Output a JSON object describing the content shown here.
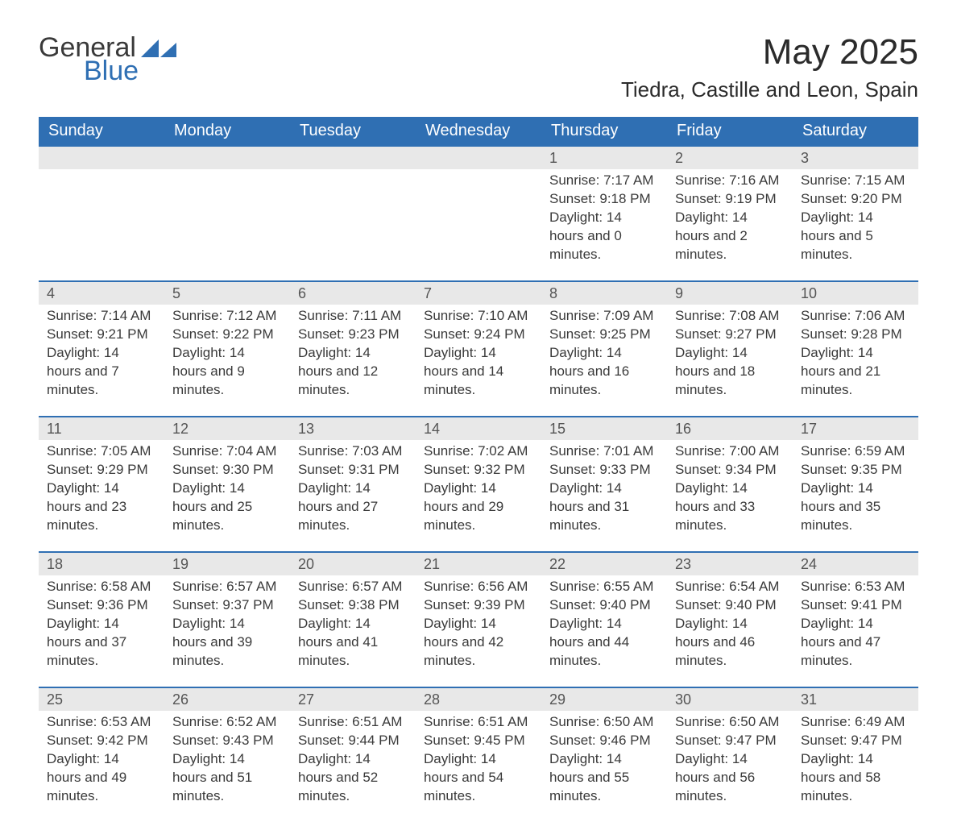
{
  "brand": {
    "name1": "General",
    "name2": "Blue",
    "icon_color": "#2f6fb3"
  },
  "title": "May 2025",
  "location": "Tiedra, Castille and Leon, Spain",
  "colors": {
    "header_bg": "#2f6fb3",
    "header_text": "#ffffff",
    "daynum_bg": "#e8e8e8",
    "text": "#3a3a3a",
    "row_border": "#2f6fb3",
    "background": "#ffffff"
  },
  "day_headers": [
    "Sunday",
    "Monday",
    "Tuesday",
    "Wednesday",
    "Thursday",
    "Friday",
    "Saturday"
  ],
  "weeks": [
    [
      null,
      null,
      null,
      null,
      {
        "day": "1",
        "sunrise": "Sunrise: 7:17 AM",
        "sunset": "Sunset: 9:18 PM",
        "daylight": "Daylight: 14 hours and 0 minutes."
      },
      {
        "day": "2",
        "sunrise": "Sunrise: 7:16 AM",
        "sunset": "Sunset: 9:19 PM",
        "daylight": "Daylight: 14 hours and 2 minutes."
      },
      {
        "day": "3",
        "sunrise": "Sunrise: 7:15 AM",
        "sunset": "Sunset: 9:20 PM",
        "daylight": "Daylight: 14 hours and 5 minutes."
      }
    ],
    [
      {
        "day": "4",
        "sunrise": "Sunrise: 7:14 AM",
        "sunset": "Sunset: 9:21 PM",
        "daylight": "Daylight: 14 hours and 7 minutes."
      },
      {
        "day": "5",
        "sunrise": "Sunrise: 7:12 AM",
        "sunset": "Sunset: 9:22 PM",
        "daylight": "Daylight: 14 hours and 9 minutes."
      },
      {
        "day": "6",
        "sunrise": "Sunrise: 7:11 AM",
        "sunset": "Sunset: 9:23 PM",
        "daylight": "Daylight: 14 hours and 12 minutes."
      },
      {
        "day": "7",
        "sunrise": "Sunrise: 7:10 AM",
        "sunset": "Sunset: 9:24 PM",
        "daylight": "Daylight: 14 hours and 14 minutes."
      },
      {
        "day": "8",
        "sunrise": "Sunrise: 7:09 AM",
        "sunset": "Sunset: 9:25 PM",
        "daylight": "Daylight: 14 hours and 16 minutes."
      },
      {
        "day": "9",
        "sunrise": "Sunrise: 7:08 AM",
        "sunset": "Sunset: 9:27 PM",
        "daylight": "Daylight: 14 hours and 18 minutes."
      },
      {
        "day": "10",
        "sunrise": "Sunrise: 7:06 AM",
        "sunset": "Sunset: 9:28 PM",
        "daylight": "Daylight: 14 hours and 21 minutes."
      }
    ],
    [
      {
        "day": "11",
        "sunrise": "Sunrise: 7:05 AM",
        "sunset": "Sunset: 9:29 PM",
        "daylight": "Daylight: 14 hours and 23 minutes."
      },
      {
        "day": "12",
        "sunrise": "Sunrise: 7:04 AM",
        "sunset": "Sunset: 9:30 PM",
        "daylight": "Daylight: 14 hours and 25 minutes."
      },
      {
        "day": "13",
        "sunrise": "Sunrise: 7:03 AM",
        "sunset": "Sunset: 9:31 PM",
        "daylight": "Daylight: 14 hours and 27 minutes."
      },
      {
        "day": "14",
        "sunrise": "Sunrise: 7:02 AM",
        "sunset": "Sunset: 9:32 PM",
        "daylight": "Daylight: 14 hours and 29 minutes."
      },
      {
        "day": "15",
        "sunrise": "Sunrise: 7:01 AM",
        "sunset": "Sunset: 9:33 PM",
        "daylight": "Daylight: 14 hours and 31 minutes."
      },
      {
        "day": "16",
        "sunrise": "Sunrise: 7:00 AM",
        "sunset": "Sunset: 9:34 PM",
        "daylight": "Daylight: 14 hours and 33 minutes."
      },
      {
        "day": "17",
        "sunrise": "Sunrise: 6:59 AM",
        "sunset": "Sunset: 9:35 PM",
        "daylight": "Daylight: 14 hours and 35 minutes."
      }
    ],
    [
      {
        "day": "18",
        "sunrise": "Sunrise: 6:58 AM",
        "sunset": "Sunset: 9:36 PM",
        "daylight": "Daylight: 14 hours and 37 minutes."
      },
      {
        "day": "19",
        "sunrise": "Sunrise: 6:57 AM",
        "sunset": "Sunset: 9:37 PM",
        "daylight": "Daylight: 14 hours and 39 minutes."
      },
      {
        "day": "20",
        "sunrise": "Sunrise: 6:57 AM",
        "sunset": "Sunset: 9:38 PM",
        "daylight": "Daylight: 14 hours and 41 minutes."
      },
      {
        "day": "21",
        "sunrise": "Sunrise: 6:56 AM",
        "sunset": "Sunset: 9:39 PM",
        "daylight": "Daylight: 14 hours and 42 minutes."
      },
      {
        "day": "22",
        "sunrise": "Sunrise: 6:55 AM",
        "sunset": "Sunset: 9:40 PM",
        "daylight": "Daylight: 14 hours and 44 minutes."
      },
      {
        "day": "23",
        "sunrise": "Sunrise: 6:54 AM",
        "sunset": "Sunset: 9:40 PM",
        "daylight": "Daylight: 14 hours and 46 minutes."
      },
      {
        "day": "24",
        "sunrise": "Sunrise: 6:53 AM",
        "sunset": "Sunset: 9:41 PM",
        "daylight": "Daylight: 14 hours and 47 minutes."
      }
    ],
    [
      {
        "day": "25",
        "sunrise": "Sunrise: 6:53 AM",
        "sunset": "Sunset: 9:42 PM",
        "daylight": "Daylight: 14 hours and 49 minutes."
      },
      {
        "day": "26",
        "sunrise": "Sunrise: 6:52 AM",
        "sunset": "Sunset: 9:43 PM",
        "daylight": "Daylight: 14 hours and 51 minutes."
      },
      {
        "day": "27",
        "sunrise": "Sunrise: 6:51 AM",
        "sunset": "Sunset: 9:44 PM",
        "daylight": "Daylight: 14 hours and 52 minutes."
      },
      {
        "day": "28",
        "sunrise": "Sunrise: 6:51 AM",
        "sunset": "Sunset: 9:45 PM",
        "daylight": "Daylight: 14 hours and 54 minutes."
      },
      {
        "day": "29",
        "sunrise": "Sunrise: 6:50 AM",
        "sunset": "Sunset: 9:46 PM",
        "daylight": "Daylight: 14 hours and 55 minutes."
      },
      {
        "day": "30",
        "sunrise": "Sunrise: 6:50 AM",
        "sunset": "Sunset: 9:47 PM",
        "daylight": "Daylight: 14 hours and 56 minutes."
      },
      {
        "day": "31",
        "sunrise": "Sunrise: 6:49 AM",
        "sunset": "Sunset: 9:47 PM",
        "daylight": "Daylight: 14 hours and 58 minutes."
      }
    ]
  ]
}
